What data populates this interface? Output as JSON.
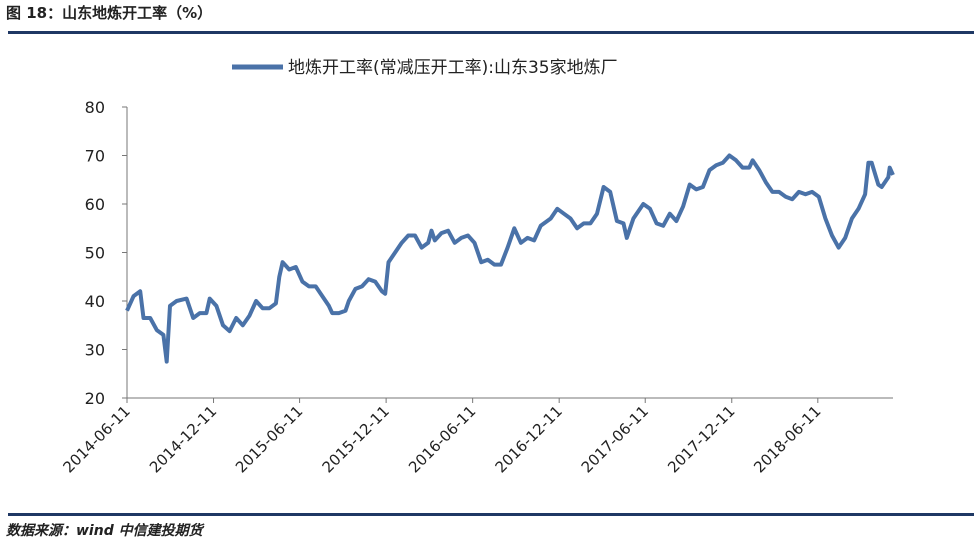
{
  "header": {
    "title": "图 18：山东地炼开工率（%）"
  },
  "chart_data": {
    "type": "line",
    "series": [
      {
        "name": "地炼开工率(常减压开工率):山东35家地炼厂",
        "color": "#4a72a8",
        "x": [
          "2014-06-11",
          "2014-06-25",
          "2014-07-09",
          "2014-07-16",
          "2014-07-30",
          "2014-08-13",
          "2014-08-27",
          "2014-09-03",
          "2014-09-10",
          "2014-09-24",
          "2014-10-15",
          "2014-10-29",
          "2014-11-12",
          "2014-11-26",
          "2014-12-03",
          "2014-12-17",
          "2014-12-31",
          "2015-01-14",
          "2015-01-28",
          "2015-02-11",
          "2015-02-25",
          "2015-03-11",
          "2015-03-25",
          "2015-04-08",
          "2015-04-22",
          "2015-04-29",
          "2015-05-06",
          "2015-05-20",
          "2015-06-03",
          "2015-06-17",
          "2015-07-01",
          "2015-07-15",
          "2015-07-29",
          "2015-08-12",
          "2015-08-19",
          "2015-09-02",
          "2015-09-16",
          "2015-09-23",
          "2015-10-07",
          "2015-10-21",
          "2015-11-04",
          "2015-11-18",
          "2015-12-02",
          "2015-12-09",
          "2015-12-16",
          "2015-12-30",
          "2016-01-13",
          "2016-01-27",
          "2016-02-10",
          "2016-02-24",
          "2016-03-09",
          "2016-03-16",
          "2016-03-23",
          "2016-04-06",
          "2016-04-20",
          "2016-05-04",
          "2016-05-18",
          "2016-06-01",
          "2016-06-15",
          "2016-06-29",
          "2016-07-13",
          "2016-07-27",
          "2016-08-10",
          "2016-08-24",
          "2016-09-07",
          "2016-09-21",
          "2016-10-05",
          "2016-10-19",
          "2016-11-02",
          "2016-11-23",
          "2016-12-07",
          "2016-12-21",
          "2017-01-04",
          "2017-01-18",
          "2017-02-01",
          "2017-02-15",
          "2017-03-01",
          "2017-03-15",
          "2017-03-29",
          "2017-04-12",
          "2017-04-26",
          "2017-05-03",
          "2017-05-17",
          "2017-06-07",
          "2017-06-21",
          "2017-07-05",
          "2017-07-19",
          "2017-08-02",
          "2017-08-16",
          "2017-08-30",
          "2017-09-13",
          "2017-09-27",
          "2017-10-11",
          "2017-10-25",
          "2017-11-08",
          "2017-11-22",
          "2017-12-06",
          "2017-12-20",
          "2018-01-03",
          "2018-01-17",
          "2018-01-24",
          "2018-02-07",
          "2018-02-21",
          "2018-03-07",
          "2018-03-21",
          "2018-04-04",
          "2018-04-18",
          "2018-05-02",
          "2018-05-16",
          "2018-05-30",
          "2018-06-13",
          "2018-06-27",
          "2018-07-11",
          "2018-07-25",
          "2018-08-08",
          "2018-08-22",
          "2018-09-05",
          "2018-09-19",
          "2018-09-26",
          "2018-10-03",
          "2018-10-17",
          "2018-10-24",
          "2018-11-07",
          "2018-11-10",
          "2018-11-17"
        ],
        "values": [
          38,
          41,
          42,
          36.5,
          36.5,
          34,
          33,
          27.5,
          39,
          40,
          40.5,
          36.5,
          37.5,
          37.5,
          40.5,
          39,
          35,
          33.8,
          36.5,
          35,
          37,
          40,
          38.5,
          38.5,
          39.5,
          45,
          48,
          46.5,
          47,
          44,
          43,
          43,
          41,
          39,
          37.5,
          37.5,
          38,
          40,
          42.5,
          43,
          44.5,
          44,
          42,
          41.5,
          48,
          50,
          52,
          53.5,
          53.5,
          51,
          52,
          54.5,
          52.5,
          54,
          54.5,
          52,
          53,
          53.5,
          52,
          48,
          48.5,
          47.5,
          47.5,
          51,
          55,
          52,
          53,
          52.5,
          55.5,
          57,
          59,
          58,
          57,
          55,
          56,
          56,
          58,
          63.5,
          62.5,
          56.5,
          56,
          53,
          57,
          60,
          59,
          56,
          55.5,
          58,
          56.5,
          59.5,
          64,
          63,
          63.5,
          67,
          68,
          68.5,
          70,
          69,
          67.5,
          67.5,
          69,
          67,
          64.5,
          62.5,
          62.5,
          61.5,
          61,
          62.5,
          62,
          62.5,
          61.5,
          57,
          53.5,
          51,
          53,
          57,
          59,
          62,
          68.5,
          68.5,
          64,
          63.5,
          65.5,
          67.5,
          66
        ]
      }
    ],
    "xlim": [
      "2014-06-11",
      "2018-11-17"
    ],
    "xticks": [
      "2014-06-11",
      "2014-12-11",
      "2015-06-11",
      "2015-12-11",
      "2016-06-11",
      "2016-12-11",
      "2017-06-11",
      "2017-12-11",
      "2018-06-11"
    ],
    "ylim": [
      20,
      80
    ],
    "yticks": [
      20,
      30,
      40,
      50,
      60,
      70,
      80
    ]
  },
  "footer": {
    "source": "数据来源：wind 中信建投期货"
  }
}
